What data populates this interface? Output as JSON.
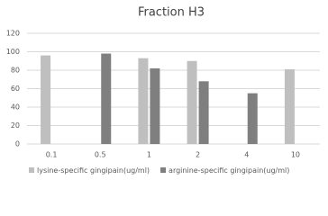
{
  "chart_data": {
    "type": "bar",
    "title": "Fraction H3",
    "categories": [
      "0.1",
      "0.5",
      "1",
      "2",
      "4",
      "10"
    ],
    "series": [
      {
        "name": "lysine-specific gingipain(ug/ml)",
        "color": "#bfbfbf",
        "values": [
          96,
          null,
          93,
          90,
          null,
          81
        ]
      },
      {
        "name": "arginine-specific gingipain(ug/ml)",
        "color": "#7f7f7f",
        "values": [
          null,
          98,
          82,
          68,
          55,
          null
        ]
      }
    ],
    "ylim": [
      0,
      120
    ],
    "yticks": [
      0,
      20,
      40,
      60,
      80,
      100,
      120
    ],
    "grid": true
  }
}
